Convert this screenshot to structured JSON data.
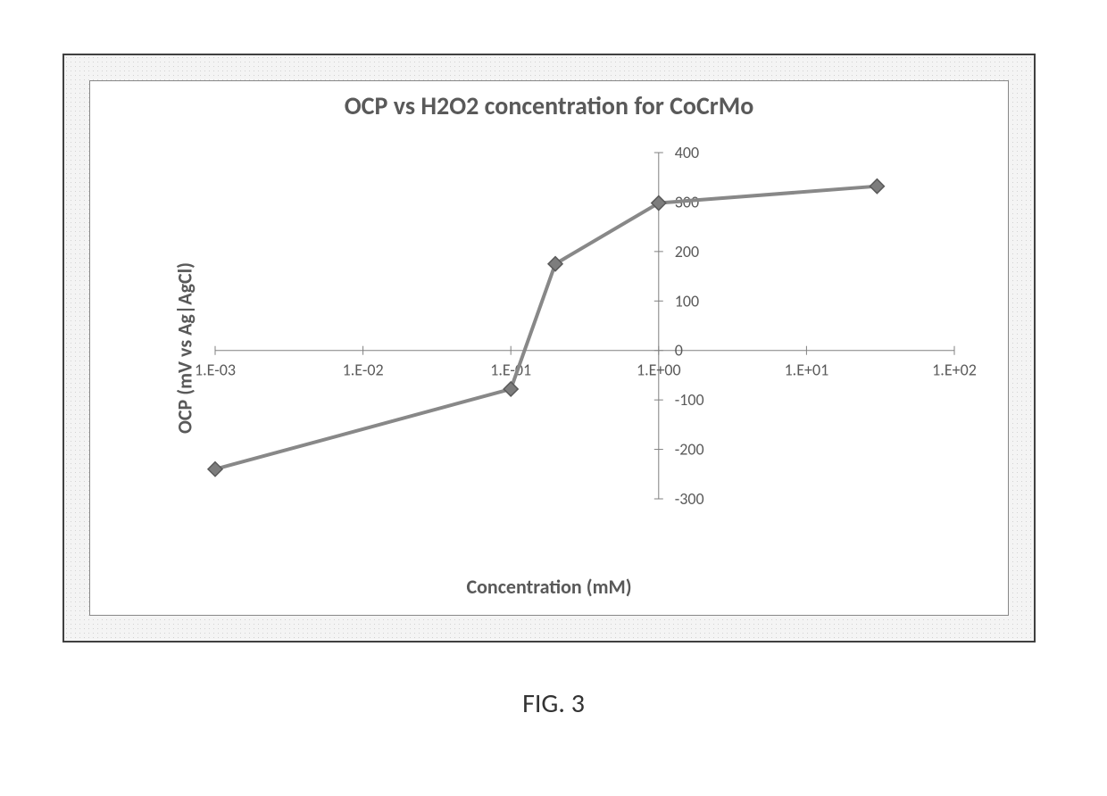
{
  "caption": "FIG. 3",
  "chart": {
    "type": "line",
    "title": "OCP vs H2O2 concentration for CoCrMo",
    "title_fontsize": 28,
    "xlabel": "Concentration (mM)",
    "ylabel": "OCP (mV vs Ag|AgCl)",
    "label_fontsize": 22,
    "tick_fontsize": 18,
    "xscale": "log",
    "xlim_exp": [
      -3,
      2
    ],
    "xtick_exps": [
      -3,
      -2,
      -1,
      0,
      1,
      2
    ],
    "xtick_labels": [
      "1.E-03",
      "1.E-02",
      "1.E-01",
      "1.E+00",
      "1.E+01",
      "1.E+02"
    ],
    "ylim": [
      -300,
      400
    ],
    "ytick_step": 100,
    "ytick_values": [
      -300,
      -200,
      -100,
      0,
      100,
      200,
      300,
      400
    ],
    "series": {
      "x_exp": [
        -3,
        -1,
        -0.698970004,
        0,
        1.477121255
      ],
      "y": [
        -240,
        -78,
        175,
        298,
        332
      ],
      "line_color": "#888888",
      "line_width": 4,
      "marker_fill": "#7d7d7d",
      "marker_stroke": "#5a5a5a",
      "marker_size": 8,
      "marker_style": "diamond"
    },
    "grid_color": "#b8b8b8",
    "grid_width": 1,
    "axis_color": "#808080",
    "background_color": "#ffffff",
    "outer_border_color": "#404040",
    "inner_border_color": "#888888",
    "stipple_background_color": "#f4f4f4",
    "stipple_dot_color": "#d2d2d2",
    "y_axis_at_x_exp": 0,
    "x_axis_at_y": 0
  }
}
